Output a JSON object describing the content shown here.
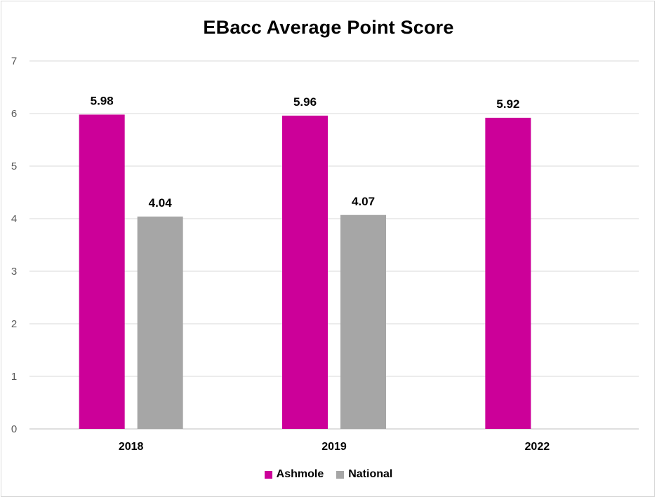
{
  "chart_data": {
    "type": "bar",
    "title": "EBacc Average Point Score",
    "categories": [
      "2018",
      "2019",
      "2022"
    ],
    "series": [
      {
        "name": "Ashmole",
        "color": "#cc0099",
        "values": [
          5.98,
          5.96,
          5.92
        ]
      },
      {
        "name": "National",
        "color": "#a6a6a6",
        "values": [
          4.04,
          4.07,
          null
        ]
      }
    ],
    "data_labels": [
      [
        "5.98",
        "5.96",
        "5.92"
      ],
      [
        "4.04",
        "4.07",
        ""
      ]
    ],
    "ylim": [
      0,
      7
    ],
    "yticks": [
      "0",
      "1",
      "2",
      "3",
      "4",
      "5",
      "6",
      "7"
    ],
    "grid": true,
    "legend_position": "bottom"
  }
}
